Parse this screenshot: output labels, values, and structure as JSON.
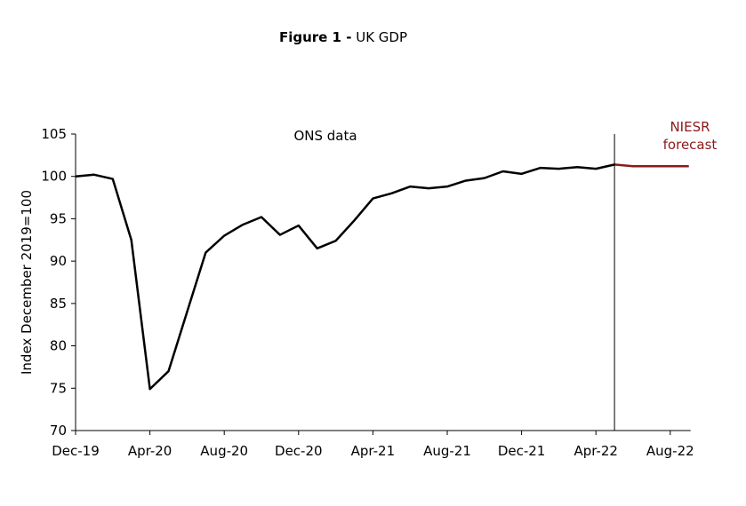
{
  "chart_data": {
    "type": "line",
    "title_prefix": "Figure 1 -",
    "title": "UK GDP",
    "ylabel": "Index December 2019=100",
    "categories": [
      "Dec-19",
      null,
      null,
      null,
      "Apr-20",
      null,
      null,
      null,
      "Aug-20",
      null,
      null,
      null,
      "Dec-20",
      null,
      null,
      null,
      "Apr-21",
      null,
      null,
      null,
      "Aug-21",
      null,
      null,
      null,
      "Dec-21",
      null,
      null,
      null,
      "Apr-22",
      null,
      null,
      null,
      "Aug-22",
      null
    ],
    "series": [
      {
        "name": "ONS data",
        "color": "#000000",
        "values": [
          100.0,
          100.2,
          99.7,
          92.5,
          74.9,
          77.0,
          84.0,
          91.0,
          93.0,
          94.3,
          95.2,
          93.1,
          94.2,
          91.5,
          92.4,
          94.8,
          97.4,
          98.0,
          98.8,
          98.6,
          98.8,
          99.5,
          99.8,
          100.6,
          100.3,
          101.0,
          100.9,
          101.1,
          100.9,
          101.4,
          null,
          null,
          null,
          null
        ]
      },
      {
        "name": "NIESR forecast",
        "color": "#8b1a1a",
        "values": [
          null,
          null,
          null,
          null,
          null,
          null,
          null,
          null,
          null,
          null,
          null,
          null,
          null,
          null,
          null,
          null,
          null,
          null,
          null,
          null,
          null,
          null,
          null,
          null,
          null,
          null,
          null,
          null,
          null,
          101.4,
          101.2,
          101.2,
          101.2,
          101.2
        ]
      }
    ],
    "ylim": [
      70,
      105
    ],
    "yticks": [
      70,
      75,
      80,
      85,
      90,
      95,
      100,
      105
    ]
  }
}
